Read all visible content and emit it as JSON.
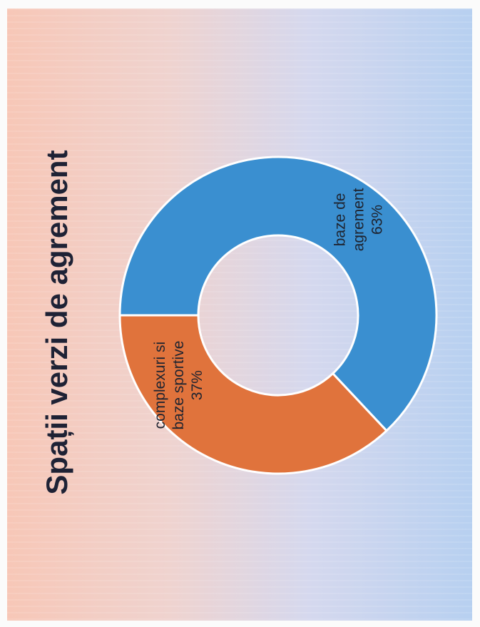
{
  "chart_data": {
    "type": "pie",
    "title": "Spații verzi de agrement",
    "donut": true,
    "slices": [
      {
        "label_lines": [
          "baze de",
          "agrement"
        ],
        "value": 63,
        "percent_label": "63%",
        "color": "#3a8fd0"
      },
      {
        "label_lines": [
          "complexuri si",
          "baze sportive"
        ],
        "value": 37,
        "percent_label": "37%",
        "color": "#e0733c"
      }
    ]
  }
}
